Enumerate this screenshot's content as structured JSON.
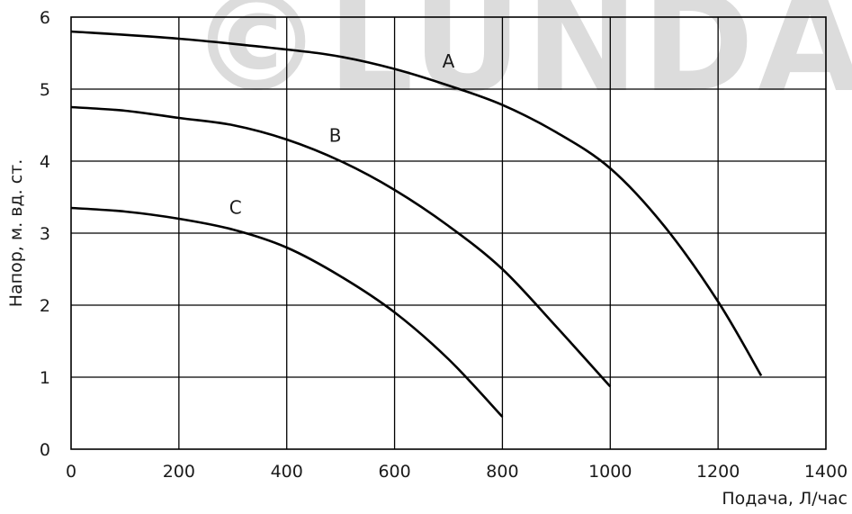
{
  "watermark": "©LUNDA",
  "chart_data": {
    "type": "line",
    "title": "",
    "xlabel": "Подача, Л/час",
    "ylabel": "Напор, м. вд. ст.",
    "xlim": [
      0,
      1400
    ],
    "ylim": [
      0,
      6
    ],
    "x_ticks": [
      0,
      200,
      400,
      600,
      800,
      1000,
      1200,
      1400
    ],
    "y_ticks": [
      0,
      1,
      2,
      3,
      4,
      5,
      6
    ],
    "grid": true,
    "legend": "none",
    "series": [
      {
        "name": "A",
        "x": [
          0,
          200,
          400,
          500,
          600,
          700,
          800,
          900,
          1000,
          1100,
          1200,
          1280
        ],
        "y": [
          5.8,
          5.7,
          5.55,
          5.45,
          5.28,
          5.05,
          4.78,
          4.4,
          3.9,
          3.1,
          2.05,
          1.02
        ]
      },
      {
        "name": "B",
        "x": [
          0,
          100,
          200,
          300,
          400,
          500,
          600,
          700,
          800,
          900,
          1000
        ],
        "y": [
          4.75,
          4.7,
          4.6,
          4.5,
          4.3,
          4.0,
          3.6,
          3.1,
          2.5,
          1.7,
          0.87
        ]
      },
      {
        "name": "C",
        "x": [
          0,
          100,
          200,
          300,
          400,
          500,
          600,
          700,
          800
        ],
        "y": [
          3.35,
          3.3,
          3.2,
          3.05,
          2.8,
          2.4,
          1.9,
          1.25,
          0.45
        ]
      }
    ]
  }
}
